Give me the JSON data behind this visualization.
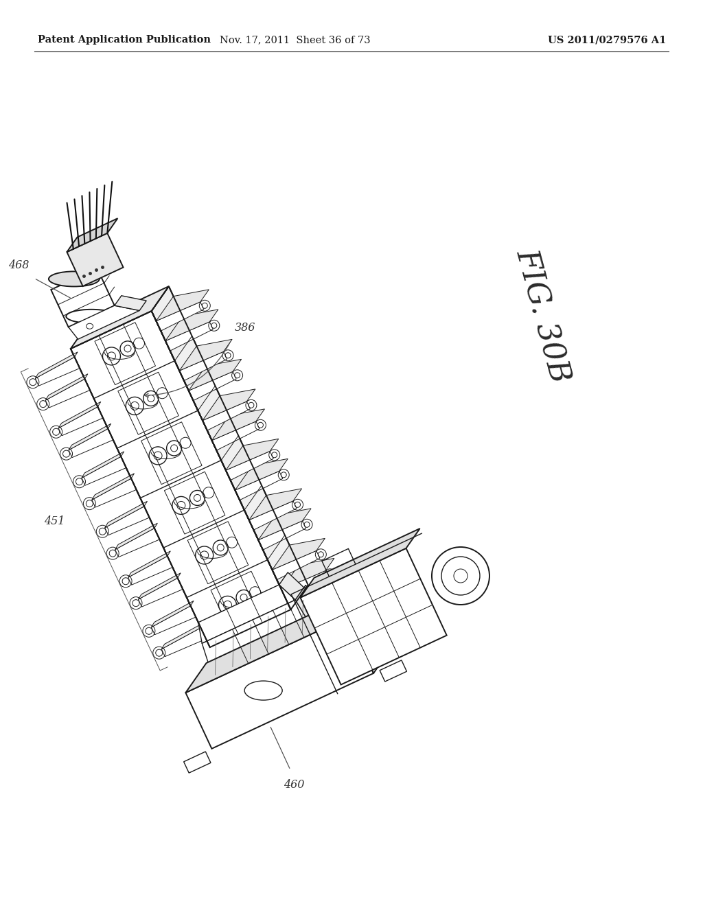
{
  "page_width": 10.24,
  "page_height": 13.2,
  "dpi": 100,
  "background_color": "#ffffff",
  "header_text_left": "Patent Application Publication",
  "header_text_mid": "Nov. 17, 2011  Sheet 36 of 73",
  "header_text_right": "US 2011/0279576 A1",
  "header_fontsize": 10.5,
  "fig_label": "FIG. 30B",
  "fig_label_fontsize": 32,
  "ref_468": "468",
  "ref_386": "386",
  "ref_451": "451",
  "ref_460": "460",
  "line_color": "#1a1a1a",
  "light_line_color": "#444444",
  "lw_main": 1.4,
  "lw_med": 1.0,
  "lw_thin": 0.7
}
